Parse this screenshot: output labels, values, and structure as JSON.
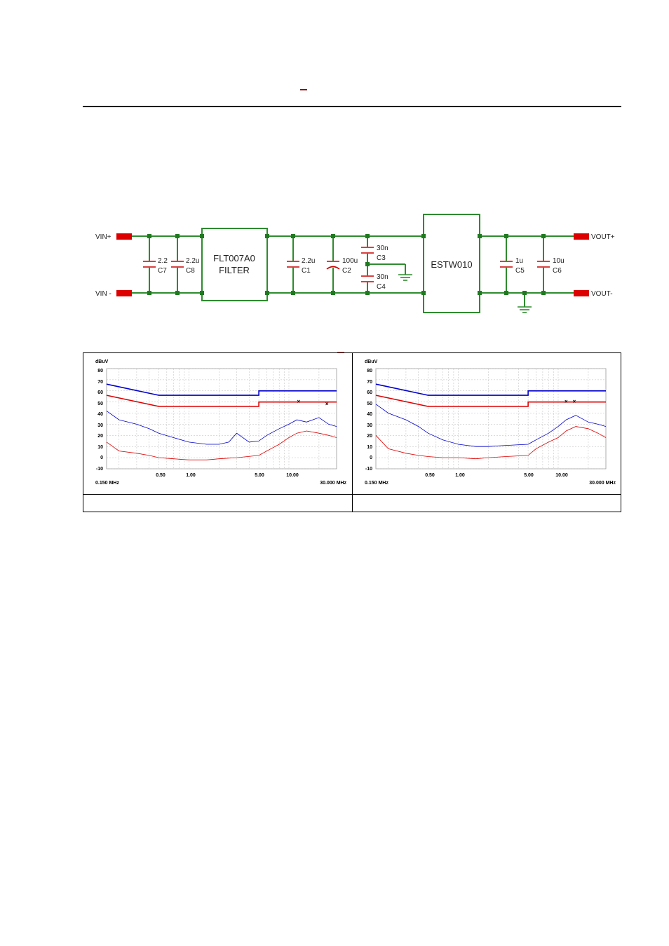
{
  "schematic": {
    "terminals": {
      "vin_plus": "VIN+",
      "vin_minus": "VIN -",
      "vout_plus": "VOUT+",
      "vout_minus": "VOUT-"
    },
    "filter_block": {
      "line1": "FLT007A0",
      "line2": "FILTER"
    },
    "converter_block": "ESTW010",
    "caps": {
      "c7": {
        "value": "2.2",
        "name": "C7"
      },
      "c8": {
        "value": "2.2u",
        "name": "C8"
      },
      "c1": {
        "value": "2.2u",
        "name": "C1"
      },
      "c2": {
        "value": "100u",
        "name": "C2"
      },
      "c3": {
        "value": "30n",
        "name": "C3"
      },
      "c4": {
        "value": "30n",
        "name": "C4"
      },
      "c5": {
        "value": "1u",
        "name": "C5"
      },
      "c6": {
        "value": "10u",
        "name": "C6"
      }
    },
    "colors": {
      "wire": "#2e8b2e",
      "terminal": "#dd0000",
      "node": "#1f7a1f"
    }
  },
  "plots": [
    {
      "ylabel": "dBuV",
      "yticks": [
        "80",
        "70",
        "60",
        "50",
        "40",
        "30",
        "20",
        "10",
        "0",
        "-10"
      ],
      "xlabel_left": "0.150 MHz",
      "xlabel_right": "30.000 MHz",
      "xticks": [
        "0.50",
        "1.00",
        "5.00",
        "10.00"
      ]
    },
    {
      "ylabel": "dBuV",
      "yticks": [
        "80",
        "70",
        "60",
        "50",
        "40",
        "30",
        "20",
        "10",
        "0",
        "-10"
      ],
      "xlabel_left": "0.150 MHz",
      "xlabel_right": "30.000 MHz",
      "xticks": [
        "0.50",
        "1.00",
        "5.00",
        "10.00"
      ]
    }
  ],
  "chart_data": [
    {
      "type": "line",
      "xlabel": "",
      "ylabel": "dBuV",
      "xlim": [
        0.15,
        30
      ],
      "ylim": [
        -10,
        80
      ],
      "xscale": "log",
      "grid": true,
      "series": [
        {
          "color": "#0000cc",
          "x": [
            0.15,
            0.5,
            5,
            5,
            30
          ],
          "values": [
            66,
            56,
            56,
            60,
            60
          ]
        },
        {
          "color": "#dd0000",
          "x": [
            0.15,
            0.5,
            5,
            5,
            30
          ],
          "values": [
            56,
            46,
            46,
            50,
            50
          ]
        },
        {
          "color": "#0000cc",
          "x": [
            0.15,
            0.2,
            0.3,
            0.4,
            0.5,
            0.7,
            1,
            1.5,
            2,
            2.5,
            3,
            4,
            5,
            6,
            8,
            10,
            12,
            15,
            20,
            25,
            30
          ],
          "values": [
            42,
            34,
            30,
            26,
            22,
            18,
            14,
            12,
            12,
            14,
            22,
            14,
            15,
            20,
            26,
            30,
            34,
            32,
            36,
            30,
            28
          ]
        },
        {
          "color": "#dd0000",
          "x": [
            0.15,
            0.2,
            0.3,
            0.4,
            0.5,
            0.7,
            1,
            1.5,
            2,
            3,
            5,
            6,
            8,
            10,
            12,
            15,
            20,
            25,
            30
          ],
          "values": [
            14,
            6,
            4,
            2,
            0,
            -1,
            -2,
            -2,
            -1,
            0,
            2,
            6,
            12,
            18,
            22,
            24,
            22,
            20,
            18
          ]
        }
      ],
      "markers": [
        {
          "x": 12.5,
          "y": 50
        },
        {
          "x": 24,
          "y": 48
        }
      ]
    },
    {
      "type": "line",
      "xlabel": "",
      "ylabel": "dBuV",
      "xlim": [
        0.15,
        30
      ],
      "ylim": [
        -10,
        80
      ],
      "xscale": "log",
      "grid": true,
      "series": [
        {
          "color": "#0000cc",
          "x": [
            0.15,
            0.5,
            5,
            5,
            30
          ],
          "values": [
            66,
            56,
            56,
            60,
            60
          ]
        },
        {
          "color": "#dd0000",
          "x": [
            0.15,
            0.5,
            5,
            5,
            30
          ],
          "values": [
            56,
            46,
            46,
            50,
            50
          ]
        },
        {
          "color": "#0000cc",
          "x": [
            0.15,
            0.2,
            0.3,
            0.4,
            0.5,
            0.7,
            1,
            1.5,
            2,
            3,
            5,
            6,
            8,
            10,
            12,
            15,
            20,
            25,
            30
          ],
          "values": [
            48,
            40,
            34,
            28,
            22,
            16,
            12,
            10,
            10,
            11,
            12,
            16,
            22,
            28,
            34,
            38,
            32,
            30,
            28
          ]
        },
        {
          "color": "#dd0000",
          "x": [
            0.15,
            0.2,
            0.3,
            0.4,
            0.5,
            0.7,
            1,
            1.5,
            2,
            3,
            5,
            6,
            8,
            10,
            12,
            15,
            20,
            25,
            30
          ],
          "values": [
            20,
            8,
            4,
            2,
            1,
            0,
            0,
            -1,
            0,
            1,
            2,
            8,
            14,
            18,
            24,
            28,
            26,
            22,
            18
          ]
        }
      ],
      "markers": [
        {
          "x": 12,
          "y": 50
        },
        {
          "x": 14.5,
          "y": 50
        }
      ]
    }
  ]
}
